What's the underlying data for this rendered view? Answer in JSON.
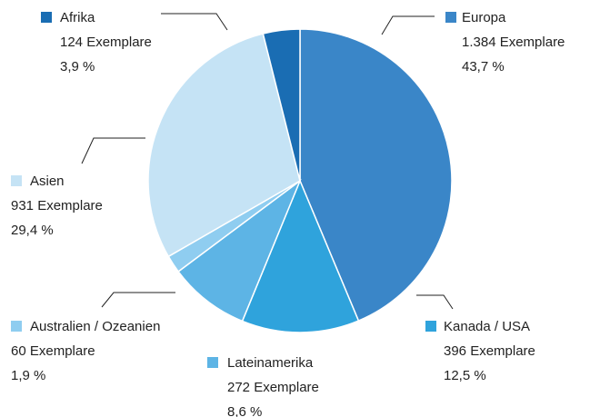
{
  "chart_data": {
    "type": "pie",
    "categories": [
      "Europa",
      "Kanada / USA",
      "Lateinamerika",
      "Australien / Ozeanien",
      "Asien",
      "Afrika"
    ],
    "values": [
      1384,
      396,
      272,
      60,
      931,
      124
    ],
    "value_labels": [
      "1.384 Exemplare",
      "396 Exemplare",
      "272 Exemplare",
      "60 Exemplare",
      "931 Exemplare",
      "124 Exemplare"
    ],
    "percents": [
      43.7,
      12.5,
      8.6,
      1.9,
      29.4,
      3.9
    ],
    "percent_labels": [
      "43,7 %",
      "12,5 %",
      "8,6 %",
      "1,9 %",
      "29,4 %",
      "3,9 %"
    ],
    "colors": [
      "#3a86c8",
      "#2fa3dc",
      "#5db4e5",
      "#8fcdf0",
      "#c5e3f5",
      "#1a6db3"
    ]
  }
}
